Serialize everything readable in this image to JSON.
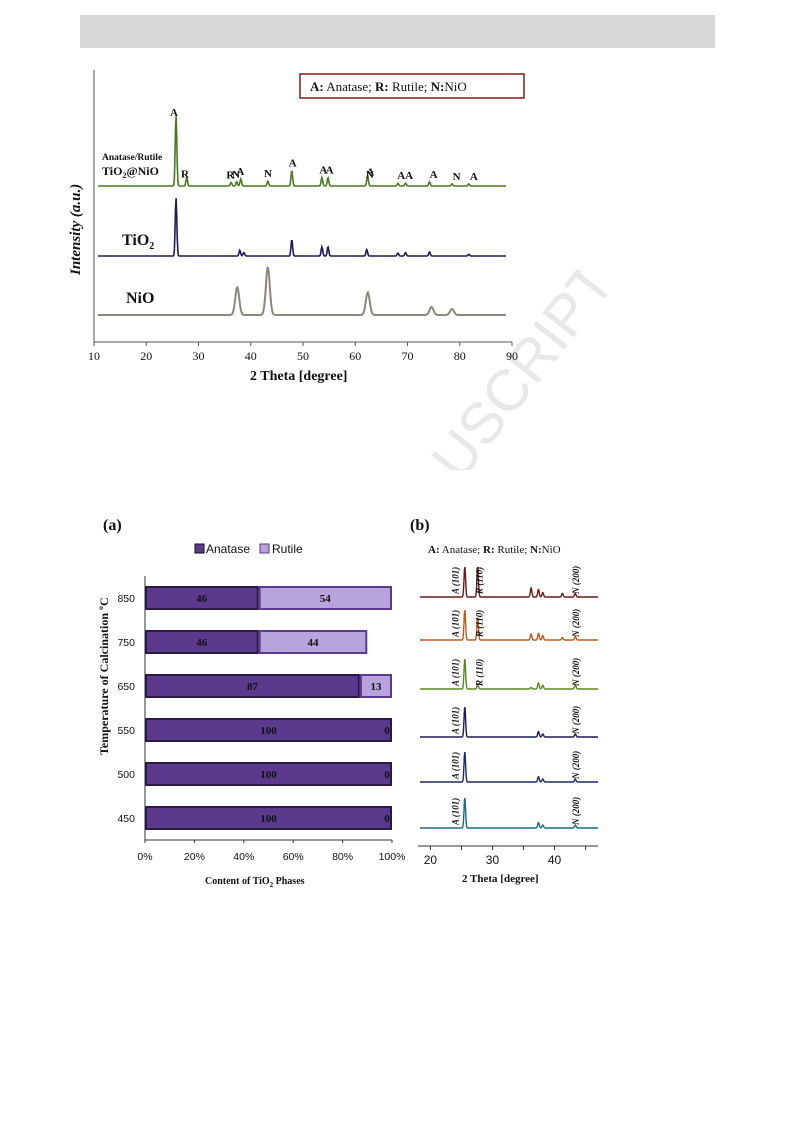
{
  "header_bar": {
    "color": "#d8d8d8"
  },
  "watermark": {
    "text": "ACCEPTED MANUSCRIPT",
    "visible_text": "USCRIPT",
    "color": "#e3e3e3"
  },
  "figure_top": {
    "legend": {
      "line1": "A:",
      "t1": " Anatase; ",
      "line2": "R:",
      "t2": " Rutile; ",
      "line3": "N:",
      "t3": "NiO",
      "border_color": "#8b1a1a"
    },
    "xlabel": "2 Theta [degree]",
    "ylabel": "Intensity (a.u.)",
    "label_anatase_rutile": "Anatase/Rutile",
    "label_tio2_nio": "TiO",
    "label_tio2_nio_sub": "2",
    "label_tio2_nio_tail": "@NiO",
    "label_tio2": "TiO",
    "label_tio2_sub": "2",
    "label_nio": "NiO"
  },
  "figure_a": {
    "panel_label": "(a)",
    "xlabel": "Content of  TiO",
    "xlabel_sub": "2",
    "xlabel_tail": " Phases",
    "ylabel": "Temperature  of Calcination ºC",
    "legend_anatase": "Anatase",
    "legend_rutile": "Rutile"
  },
  "figure_b": {
    "panel_label": "(b)",
    "legend": {
      "line1": "A:",
      "t1": " Anatase;  ",
      "line2": "R:",
      "t2": " Rutile;  ",
      "line3": "N:",
      "t3": "NiO"
    },
    "xlabel": "2 Theta [degree]"
  },
  "chart_data": [
    {
      "type": "line",
      "title": "",
      "xlabel": "2 Theta [degree]",
      "ylabel": "Intensity (a.u.)",
      "xlim": [
        10,
        90
      ],
      "xticks": [
        10,
        20,
        30,
        40,
        50,
        60,
        70,
        80,
        90
      ],
      "series": [
        {
          "name": "Anatase/Rutile TiO2@NiO",
          "color": "#4a7a1e",
          "peaks": [
            {
              "x": 25.3,
              "h": 1.0,
              "label": "A"
            },
            {
              "x": 27.4,
              "h": 0.12,
              "label": "R"
            },
            {
              "x": 36.1,
              "h": 0.05,
              "label": "R"
            },
            {
              "x": 37.2,
              "h": 0.06,
              "label": "N"
            },
            {
              "x": 38.0,
              "h": 0.1,
              "label": "A"
            },
            {
              "x": 43.3,
              "h": 0.07,
              "label": "N"
            },
            {
              "x": 48.0,
              "h": 0.22,
              "label": "A"
            },
            {
              "x": 53.9,
              "h": 0.12,
              "label": "A"
            },
            {
              "x": 55.1,
              "h": 0.12,
              "label": "A"
            },
            {
              "x": 62.8,
              "h": 0.06,
              "label": "N"
            },
            {
              "x": 62.9,
              "h": 0.09,
              "label": "A"
            },
            {
              "x": 68.8,
              "h": 0.04,
              "label": "A"
            },
            {
              "x": 70.3,
              "h": 0.04,
              "label": "A"
            },
            {
              "x": 75.0,
              "h": 0.06,
              "label": "A"
            },
            {
              "x": 79.4,
              "h": 0.03,
              "label": "N"
            },
            {
              "x": 82.7,
              "h": 0.03,
              "label": "A"
            }
          ]
        },
        {
          "name": "TiO2",
          "color": "#1c1c5a",
          "peaks": [
            {
              "x": 25.3,
              "h": 1.0
            },
            {
              "x": 37.8,
              "h": 0.1
            },
            {
              "x": 38.6,
              "h": 0.06
            },
            {
              "x": 48.0,
              "h": 0.28
            },
            {
              "x": 53.9,
              "h": 0.16
            },
            {
              "x": 55.1,
              "h": 0.16
            },
            {
              "x": 62.7,
              "h": 0.11
            },
            {
              "x": 68.8,
              "h": 0.05
            },
            {
              "x": 70.3,
              "h": 0.06
            },
            {
              "x": 75.0,
              "h": 0.07
            },
            {
              "x": 82.7,
              "h": 0.03
            }
          ]
        },
        {
          "name": "NiO",
          "color": "#8a8a7a",
          "peaks": [
            {
              "x": 37.3,
              "h": 0.55
            },
            {
              "x": 43.3,
              "h": 0.95
            },
            {
              "x": 62.9,
              "h": 0.45
            },
            {
              "x": 75.4,
              "h": 0.16
            },
            {
              "x": 79.4,
              "h": 0.12
            }
          ]
        }
      ]
    },
    {
      "type": "bar",
      "orientation": "horizontal",
      "stacked": "percent",
      "title": "",
      "xlabel": "Content of TiO2 Phases",
      "ylabel": "Temperature of Calcination ºC",
      "xlim": [
        0,
        100
      ],
      "xticks": [
        "0%",
        "20%",
        "40%",
        "60%",
        "80%",
        "100%"
      ],
      "categories": [
        "850",
        "750",
        "650",
        "550",
        "500",
        "450"
      ],
      "series": [
        {
          "name": "Anatase",
          "color": "#5b3a8e",
          "values": [
            46,
            46,
            87,
            100,
            100,
            100
          ]
        },
        {
          "name": "Rutile",
          "color": "#b9a3dc",
          "values": [
            54,
            44,
            13,
            0,
            0,
            0
          ]
        }
      ],
      "legend": "top"
    },
    {
      "type": "line",
      "title": "",
      "xlabel": "2 Theta [degree]",
      "xlim": [
        18,
        47
      ],
      "xticks": [
        20,
        25,
        30,
        35,
        40,
        45
      ],
      "series": [
        {
          "color": "#6b1a1a",
          "peaks": [
            {
              "x": 25.3,
              "h": 1.0
            },
            {
              "x": 27.4,
              "h": 1.0
            },
            {
              "x": 36.1,
              "h": 0.3
            },
            {
              "x": 37.3,
              "h": 0.25
            },
            {
              "x": 38.0,
              "h": 0.15
            },
            {
              "x": 41.2,
              "h": 0.12
            },
            {
              "x": 43.3,
              "h": 0.12
            }
          ],
          "labels": [
            "A (101)",
            "R (110)",
            "N (200)"
          ]
        },
        {
          "color": "#c25a1a",
          "peaks": [
            {
              "x": 25.3,
              "h": 1.0
            },
            {
              "x": 27.4,
              "h": 0.75
            },
            {
              "x": 36.1,
              "h": 0.2
            },
            {
              "x": 37.3,
              "h": 0.22
            },
            {
              "x": 38.0,
              "h": 0.15
            },
            {
              "x": 41.2,
              "h": 0.08
            },
            {
              "x": 43.3,
              "h": 0.12
            }
          ],
          "labels": [
            "A (101)",
            "R (110)",
            "N (200)"
          ]
        },
        {
          "color": "#5a8a1e",
          "peaks": [
            {
              "x": 25.3,
              "h": 1.0
            },
            {
              "x": 27.4,
              "h": 0.15
            },
            {
              "x": 36.1,
              "h": 0.05
            },
            {
              "x": 37.3,
              "h": 0.2
            },
            {
              "x": 38.0,
              "h": 0.12
            },
            {
              "x": 43.3,
              "h": 0.15
            }
          ],
          "labels": [
            "A (101)",
            "R (110)",
            "N (200)"
          ]
        },
        {
          "color": "#1c1c5a",
          "peaks": [
            {
              "x": 25.3,
              "h": 1.0
            },
            {
              "x": 37.3,
              "h": 0.18
            },
            {
              "x": 38.0,
              "h": 0.1
            },
            {
              "x": 43.3,
              "h": 0.1
            }
          ],
          "labels": [
            "A (101)",
            "N (200)"
          ]
        },
        {
          "color": "#1c2a6a",
          "peaks": [
            {
              "x": 25.3,
              "h": 1.0
            },
            {
              "x": 37.3,
              "h": 0.18
            },
            {
              "x": 38.0,
              "h": 0.1
            },
            {
              "x": 43.3,
              "h": 0.1
            }
          ],
          "labels": [
            "A (101)",
            "N (200)"
          ]
        },
        {
          "color": "#1a6a8a",
          "peaks": [
            {
              "x": 25.3,
              "h": 1.0
            },
            {
              "x": 37.3,
              "h": 0.18
            },
            {
              "x": 38.0,
              "h": 0.1
            },
            {
              "x": 43.3,
              "h": 0.1
            }
          ],
          "labels": [
            "A (101)",
            "N (200)"
          ]
        }
      ]
    }
  ]
}
